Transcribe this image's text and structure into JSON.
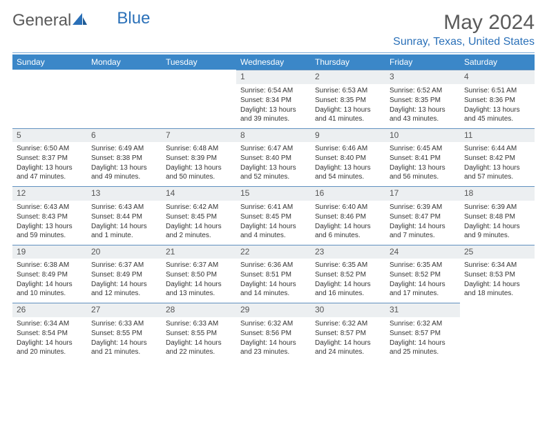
{
  "logo": {
    "text1": "General",
    "text2": "Blue"
  },
  "title": "May 2024",
  "location": "Sunray, Texas, United States",
  "colors": {
    "header_bg": "#3b87c8",
    "accent": "#2a70b8",
    "daynum_bg": "#eceff1",
    "border": "#5e8fbf",
    "text": "#333333",
    "title_text": "#5a5a5a"
  },
  "day_names": [
    "Sunday",
    "Monday",
    "Tuesday",
    "Wednesday",
    "Thursday",
    "Friday",
    "Saturday"
  ],
  "leading_blanks": 3,
  "days": [
    {
      "n": 1,
      "sunrise": "6:54 AM",
      "sunset": "8:34 PM",
      "daylight": "13 hours and 39 minutes."
    },
    {
      "n": 2,
      "sunrise": "6:53 AM",
      "sunset": "8:35 PM",
      "daylight": "13 hours and 41 minutes."
    },
    {
      "n": 3,
      "sunrise": "6:52 AM",
      "sunset": "8:35 PM",
      "daylight": "13 hours and 43 minutes."
    },
    {
      "n": 4,
      "sunrise": "6:51 AM",
      "sunset": "8:36 PM",
      "daylight": "13 hours and 45 minutes."
    },
    {
      "n": 5,
      "sunrise": "6:50 AM",
      "sunset": "8:37 PM",
      "daylight": "13 hours and 47 minutes."
    },
    {
      "n": 6,
      "sunrise": "6:49 AM",
      "sunset": "8:38 PM",
      "daylight": "13 hours and 49 minutes."
    },
    {
      "n": 7,
      "sunrise": "6:48 AM",
      "sunset": "8:39 PM",
      "daylight": "13 hours and 50 minutes."
    },
    {
      "n": 8,
      "sunrise": "6:47 AM",
      "sunset": "8:40 PM",
      "daylight": "13 hours and 52 minutes."
    },
    {
      "n": 9,
      "sunrise": "6:46 AM",
      "sunset": "8:40 PM",
      "daylight": "13 hours and 54 minutes."
    },
    {
      "n": 10,
      "sunrise": "6:45 AM",
      "sunset": "8:41 PM",
      "daylight": "13 hours and 56 minutes."
    },
    {
      "n": 11,
      "sunrise": "6:44 AM",
      "sunset": "8:42 PM",
      "daylight": "13 hours and 57 minutes."
    },
    {
      "n": 12,
      "sunrise": "6:43 AM",
      "sunset": "8:43 PM",
      "daylight": "13 hours and 59 minutes."
    },
    {
      "n": 13,
      "sunrise": "6:43 AM",
      "sunset": "8:44 PM",
      "daylight": "14 hours and 1 minute."
    },
    {
      "n": 14,
      "sunrise": "6:42 AM",
      "sunset": "8:45 PM",
      "daylight": "14 hours and 2 minutes."
    },
    {
      "n": 15,
      "sunrise": "6:41 AM",
      "sunset": "8:45 PM",
      "daylight": "14 hours and 4 minutes."
    },
    {
      "n": 16,
      "sunrise": "6:40 AM",
      "sunset": "8:46 PM",
      "daylight": "14 hours and 6 minutes."
    },
    {
      "n": 17,
      "sunrise": "6:39 AM",
      "sunset": "8:47 PM",
      "daylight": "14 hours and 7 minutes."
    },
    {
      "n": 18,
      "sunrise": "6:39 AM",
      "sunset": "8:48 PM",
      "daylight": "14 hours and 9 minutes."
    },
    {
      "n": 19,
      "sunrise": "6:38 AM",
      "sunset": "8:49 PM",
      "daylight": "14 hours and 10 minutes."
    },
    {
      "n": 20,
      "sunrise": "6:37 AM",
      "sunset": "8:49 PM",
      "daylight": "14 hours and 12 minutes."
    },
    {
      "n": 21,
      "sunrise": "6:37 AM",
      "sunset": "8:50 PM",
      "daylight": "14 hours and 13 minutes."
    },
    {
      "n": 22,
      "sunrise": "6:36 AM",
      "sunset": "8:51 PM",
      "daylight": "14 hours and 14 minutes."
    },
    {
      "n": 23,
      "sunrise": "6:35 AM",
      "sunset": "8:52 PM",
      "daylight": "14 hours and 16 minutes."
    },
    {
      "n": 24,
      "sunrise": "6:35 AM",
      "sunset": "8:52 PM",
      "daylight": "14 hours and 17 minutes."
    },
    {
      "n": 25,
      "sunrise": "6:34 AM",
      "sunset": "8:53 PM",
      "daylight": "14 hours and 18 minutes."
    },
    {
      "n": 26,
      "sunrise": "6:34 AM",
      "sunset": "8:54 PM",
      "daylight": "14 hours and 20 minutes."
    },
    {
      "n": 27,
      "sunrise": "6:33 AM",
      "sunset": "8:55 PM",
      "daylight": "14 hours and 21 minutes."
    },
    {
      "n": 28,
      "sunrise": "6:33 AM",
      "sunset": "8:55 PM",
      "daylight": "14 hours and 22 minutes."
    },
    {
      "n": 29,
      "sunrise": "6:32 AM",
      "sunset": "8:56 PM",
      "daylight": "14 hours and 23 minutes."
    },
    {
      "n": 30,
      "sunrise": "6:32 AM",
      "sunset": "8:57 PM",
      "daylight": "14 hours and 24 minutes."
    },
    {
      "n": 31,
      "sunrise": "6:32 AM",
      "sunset": "8:57 PM",
      "daylight": "14 hours and 25 minutes."
    }
  ],
  "labels": {
    "sunrise": "Sunrise:",
    "sunset": "Sunset:",
    "daylight": "Daylight:"
  }
}
